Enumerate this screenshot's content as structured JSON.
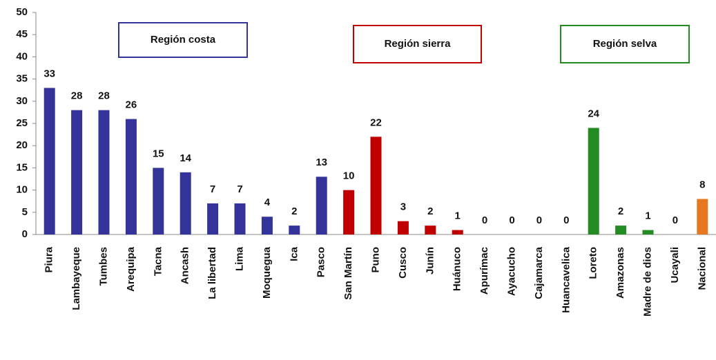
{
  "chart_data": {
    "type": "bar",
    "categories": [
      "Piura",
      "Lambayeque",
      "Tumbes",
      "Arequipa",
      "Tacna",
      "Ancash",
      "La libertad",
      "Lima",
      "Moquegua",
      "Ica",
      "Pasco",
      "San Martín",
      "Puno",
      "Cusco",
      "Junín",
      "Huánuco",
      "Apurímac",
      "Ayacucho",
      "Cajamarca",
      "Huancavelica",
      "Loreto",
      "Amazonas",
      "Madre de dios",
      "Ucayali",
      "Nacional"
    ],
    "values": [
      33,
      28,
      28,
      26,
      15,
      14,
      7,
      7,
      4,
      2,
      13,
      10,
      22,
      3,
      2,
      1,
      0,
      0,
      0,
      0,
      24,
      2,
      1,
      0,
      8
    ],
    "colors": [
      "#333399",
      "#333399",
      "#333399",
      "#333399",
      "#333399",
      "#333399",
      "#333399",
      "#333399",
      "#333399",
      "#333399",
      "#333399",
      "#c00000",
      "#c00000",
      "#c00000",
      "#c00000",
      "#c00000",
      "#c00000",
      "#c00000",
      "#c00000",
      "#c00000",
      "#228b22",
      "#228b22",
      "#228b22",
      "#228b22",
      "#e87722"
    ],
    "ylim": [
      0,
      50
    ],
    "yticks": [
      0,
      5,
      10,
      15,
      20,
      25,
      30,
      35,
      40,
      45,
      50
    ],
    "grid": false,
    "annotations": [
      {
        "text": "Región costa",
        "color": "#333399"
      },
      {
        "text": "Región sierra",
        "color": "#c00000"
      },
      {
        "text": "Región selva",
        "color": "#228b22"
      }
    ]
  }
}
